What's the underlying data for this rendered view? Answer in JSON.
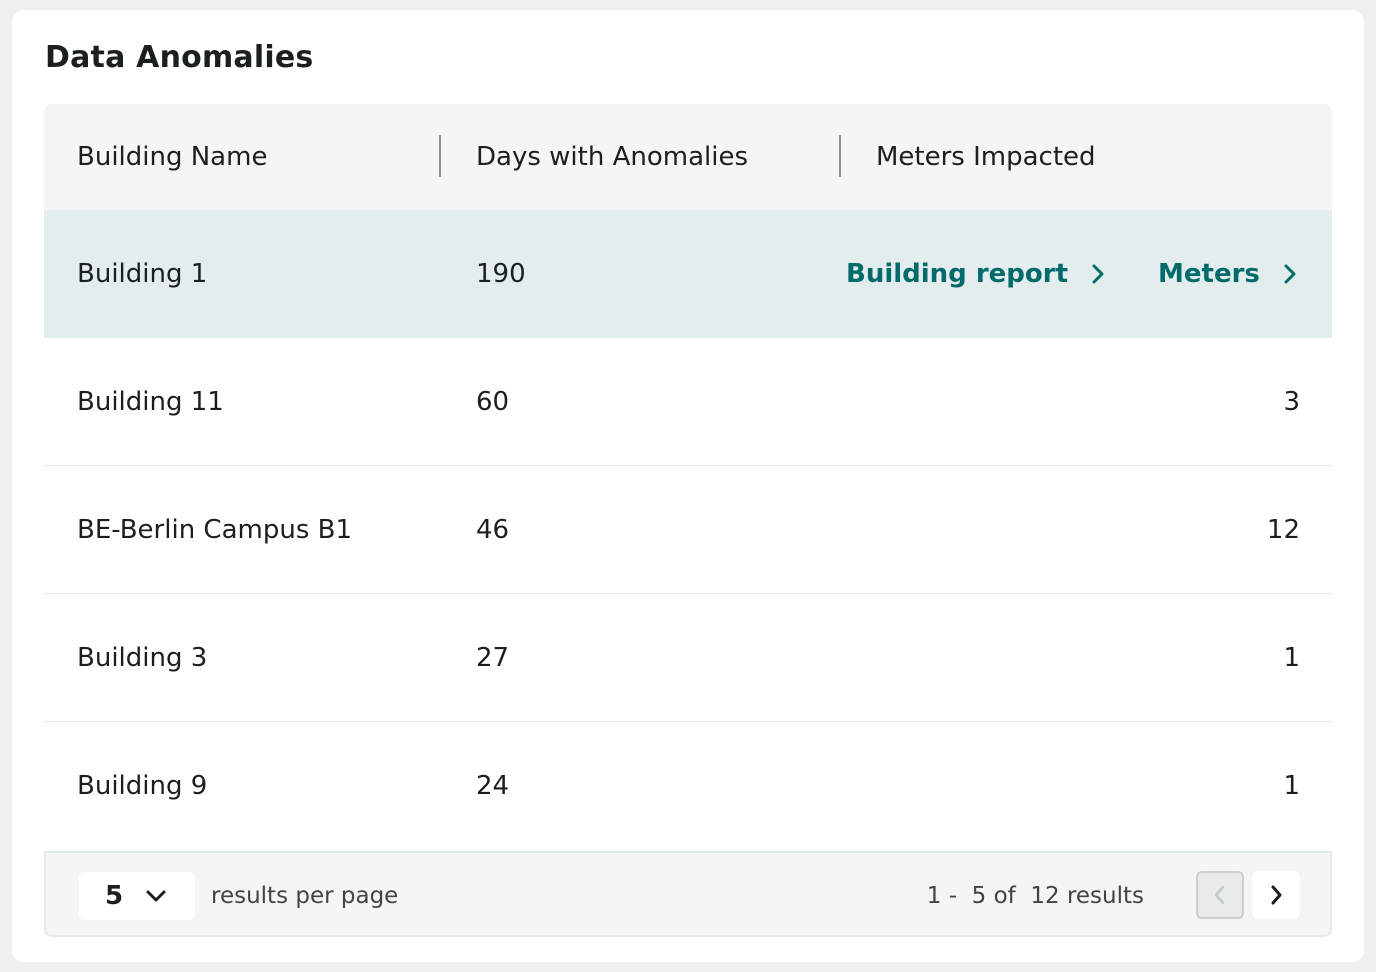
{
  "card": {
    "title": "Data Anomalies"
  },
  "table": {
    "columns": [
      "Building Name",
      "Days with Anomalies",
      "Meters Impacted"
    ],
    "rows": [
      {
        "name": "Building 1",
        "days": "190",
        "meters": "",
        "hovered": true
      },
      {
        "name": "Building 11",
        "days": "60",
        "meters": "3"
      },
      {
        "name": "BE-Berlin Campus B1",
        "days": "46",
        "meters": "12"
      },
      {
        "name": "Building 3",
        "days": "27",
        "meters": "1"
      },
      {
        "name": "Building 9",
        "days": "24",
        "meters": "1"
      }
    ],
    "row_actions": {
      "building_report": "Building report",
      "meters": "Meters"
    }
  },
  "pagination": {
    "per_page_value": "5",
    "per_page_label": "results per page",
    "range_text": "1 -  5 of  12 results",
    "prev_icon": "chevron-left-icon",
    "next_icon": "chevron-right-icon"
  },
  "colors": {
    "accent": "#006b6a",
    "hover_row": "#e4eded",
    "header_bg": "#f4f6f5"
  }
}
